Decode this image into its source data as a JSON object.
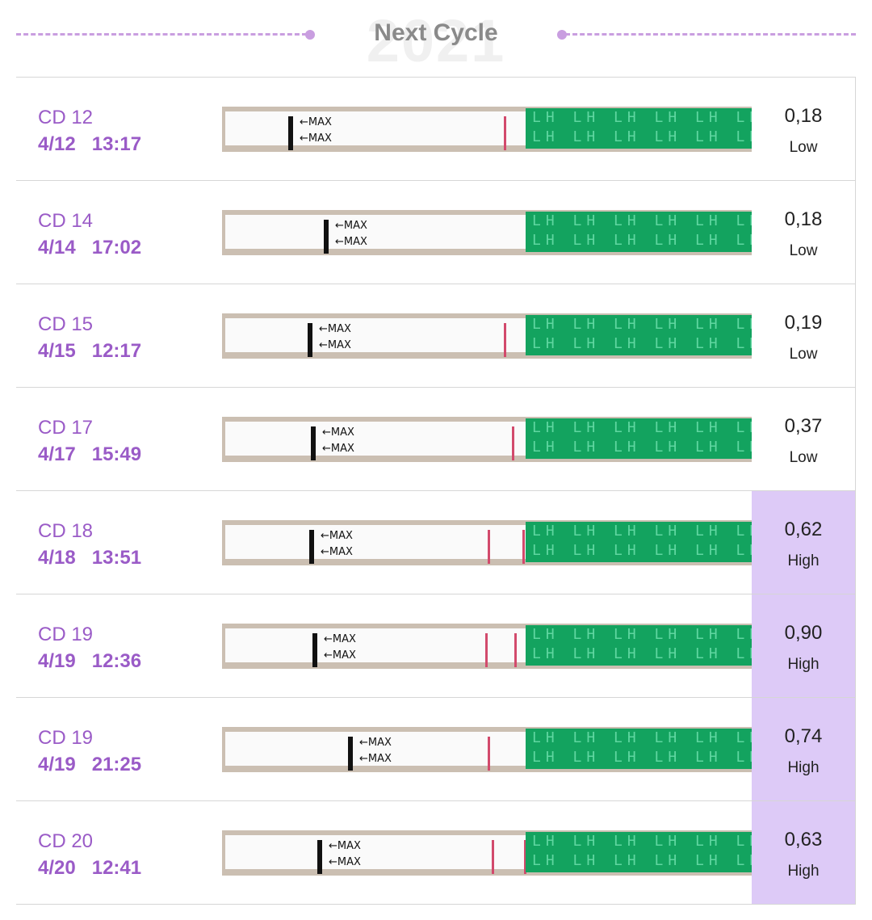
{
  "header": {
    "year": "2021",
    "title": "Next Cycle"
  },
  "rows": [
    {
      "cd": "CD 12",
      "datetime": "4/12   13:17",
      "value": "0,18",
      "level": "Low"
    },
    {
      "cd": "CD 14",
      "datetime": "4/14   17:02",
      "value": "0,18",
      "level": "Low"
    },
    {
      "cd": "CD 15",
      "datetime": "4/15   12:17",
      "value": "0,19",
      "level": "Low"
    },
    {
      "cd": "CD 17",
      "datetime": "4/17   15:49",
      "value": "0,37",
      "level": "Low"
    },
    {
      "cd": "CD 18",
      "datetime": "4/18   13:51",
      "value": "0,62",
      "level": "High"
    },
    {
      "cd": "CD 19",
      "datetime": "4/19   12:36",
      "value": "0,90",
      "level": "High"
    },
    {
      "cd": "CD 19",
      "datetime": "4/19   21:25",
      "value": "0,74",
      "level": "High"
    },
    {
      "cd": "CD 20",
      "datetime": "4/20   12:41",
      "value": "0,63",
      "level": "High"
    }
  ],
  "strip": {
    "max_label": "←MAX",
    "lh_label": "LH LH LH LH LH LH LH"
  },
  "colors": {
    "accent": "#9a5bc7",
    "high_bg": "#ddcaf7",
    "dash": "#c99ee0",
    "lh_green": "#13a35f"
  }
}
